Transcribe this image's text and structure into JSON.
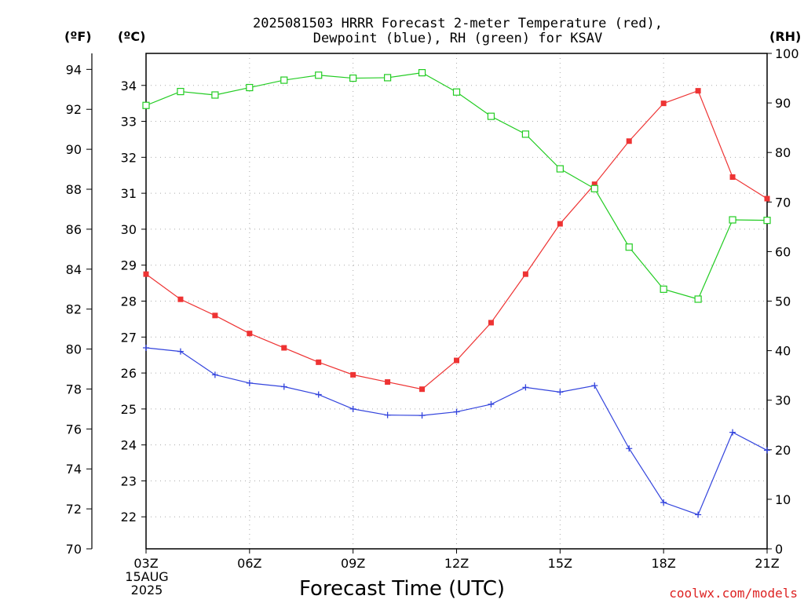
{
  "chart_data": {
    "type": "line",
    "title_line1": "2025081503 HRRR Forecast 2-meter Temperature (red),",
    "title_line2": "Dewpoint (blue), RH (green) for KSAV",
    "xlabel": "Forecast Time (UTC)",
    "credit": "coolwx.com/models",
    "units": {
      "fahrenheit": "(ºF)",
      "celsius": "(ºC)",
      "rh": "(RH)"
    },
    "x_ticks": [
      "03Z",
      "06Z",
      "09Z",
      "12Z",
      "15Z",
      "18Z",
      "21Z"
    ],
    "x_tick_hours": [
      3,
      6,
      9,
      12,
      15,
      18,
      21
    ],
    "date_label": [
      "15AUG",
      "2025"
    ],
    "x_hours": [
      3,
      4,
      5,
      6,
      7,
      8,
      9,
      10,
      11,
      12,
      13,
      14,
      15,
      16,
      17,
      18,
      19,
      20,
      21
    ],
    "xlim": [
      3,
      21
    ],
    "y_left_f": {
      "ticks": [
        70,
        72,
        74,
        76,
        78,
        80,
        82,
        84,
        86,
        88,
        90,
        92,
        94
      ],
      "range": [
        70,
        94.8
      ]
    },
    "y_left_c": {
      "ticks": [
        22,
        23,
        24,
        25,
        26,
        27,
        28,
        29,
        30,
        31,
        32,
        33,
        34
      ],
      "range": [
        21.11,
        34.89
      ]
    },
    "y_right_rh": {
      "ticks": [
        0,
        10,
        20,
        30,
        40,
        50,
        60,
        70,
        80,
        90,
        100
      ],
      "range": [
        0,
        100
      ]
    },
    "grid": true,
    "series": [
      {
        "name": "Temperature",
        "axis": "celsius",
        "color": "#ee3333",
        "marker": "filled-square",
        "values": [
          28.75,
          28.05,
          27.6,
          27.1,
          26.7,
          26.3,
          25.95,
          25.75,
          25.55,
          26.35,
          27.4,
          28.75,
          30.15,
          31.25,
          32.45,
          33.5,
          33.85,
          31.45,
          30.85
        ]
      },
      {
        "name": "Dewpoint",
        "axis": "celsius",
        "color": "#3344dd",
        "marker": "plus",
        "values": [
          26.7,
          26.6,
          25.95,
          25.72,
          25.62,
          25.4,
          25.0,
          24.83,
          24.82,
          24.92,
          25.13,
          25.6,
          25.47,
          25.65,
          23.9,
          22.4,
          22.06,
          24.35,
          23.85
        ]
      },
      {
        "name": "RH",
        "axis": "rh",
        "color": "#22cc22",
        "marker": "open-square",
        "values": [
          89.5,
          92.3,
          91.6,
          93.1,
          94.6,
          95.6,
          95.0,
          95.1,
          96.1,
          92.2,
          87.3,
          83.7,
          76.7,
          72.7,
          60.9,
          52.4,
          50.4,
          66.4,
          66.3
        ]
      }
    ]
  }
}
